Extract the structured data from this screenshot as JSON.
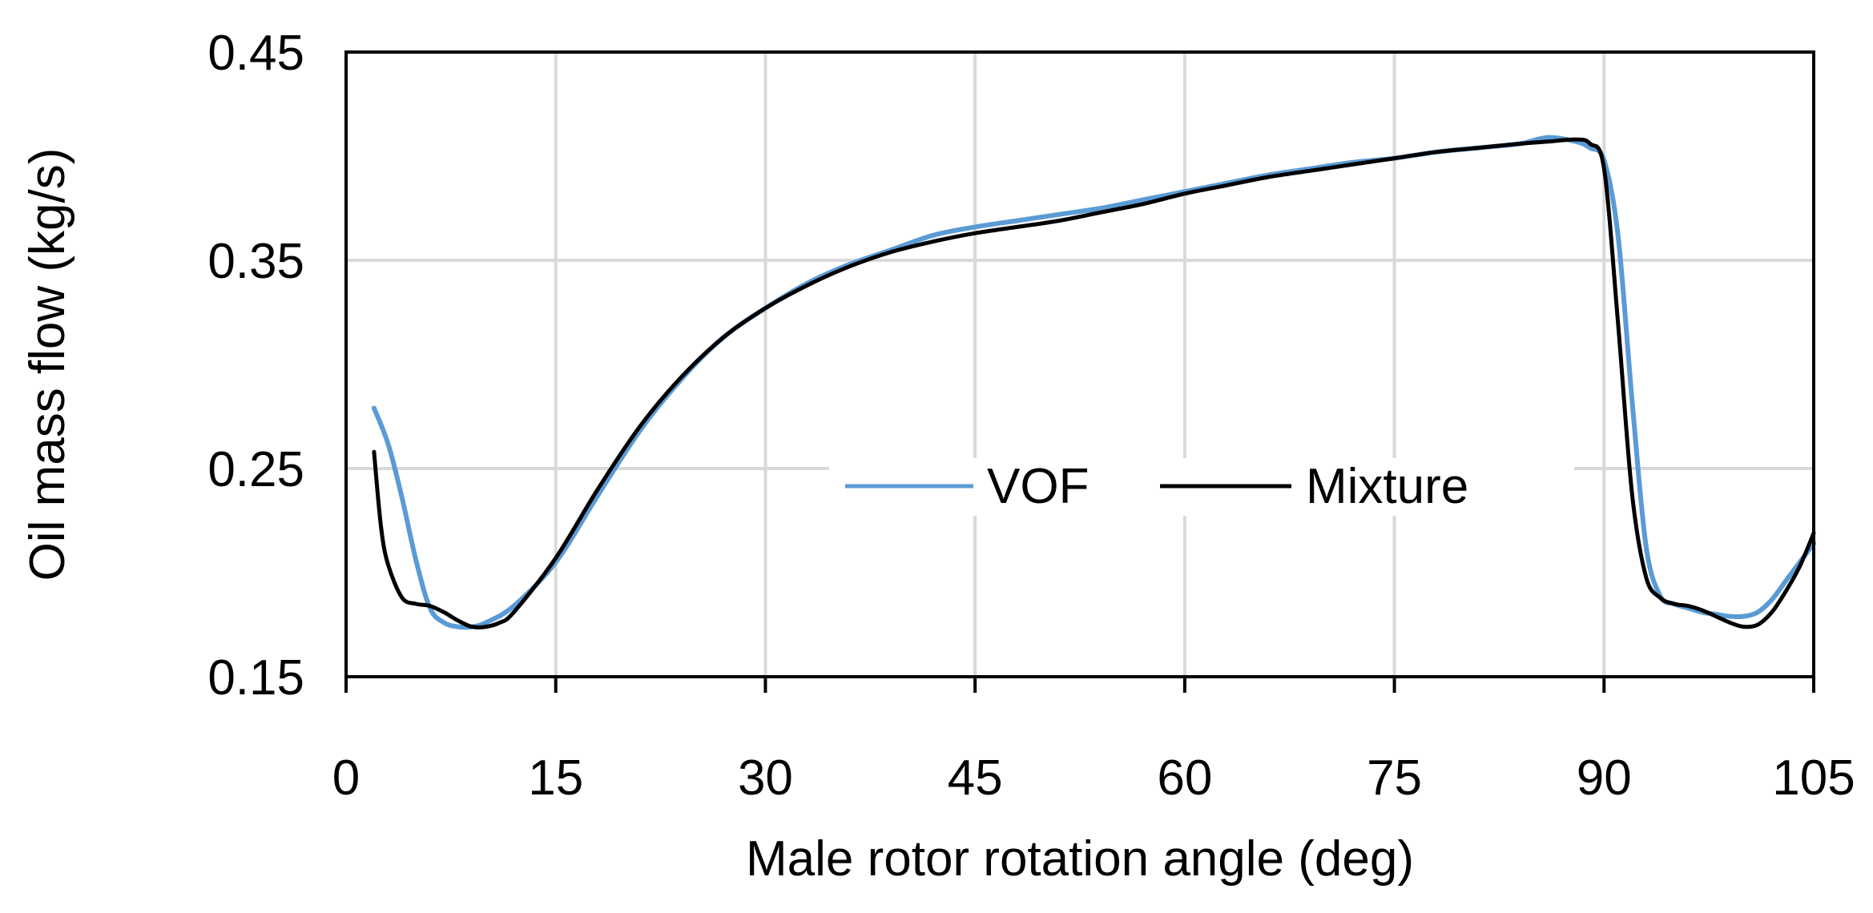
{
  "chart_data": {
    "type": "line",
    "title": "",
    "xlabel": "Male rotor rotation angle (deg)",
    "ylabel": "Oil mass flow (kg/s)",
    "xlim": [
      0,
      105
    ],
    "ylim": [
      0.15,
      0.45
    ],
    "xticks": [
      0,
      15,
      30,
      45,
      60,
      75,
      90,
      105
    ],
    "yticks": [
      0.15,
      0.25,
      0.35,
      0.45
    ],
    "xtick_labels": [
      "0",
      "15",
      "30",
      "45",
      "60",
      "75",
      "90",
      "105"
    ],
    "ytick_labels": [
      "0.15",
      "0.25",
      "0.35",
      "0.45"
    ],
    "grid": true,
    "legend_position": "center-right",
    "series": [
      {
        "name": "VOF",
        "color": "#5b9bd5",
        "x": [
          2,
          3,
          4,
          5,
          6,
          7,
          8,
          9,
          10,
          12,
          15,
          18,
          21,
          24,
          27,
          30,
          33,
          36,
          39,
          42,
          45,
          48,
          51,
          54,
          57,
          60,
          63,
          66,
          69,
          72,
          75,
          78,
          81,
          84,
          86,
          88,
          89,
          90,
          91,
          92,
          93,
          94,
          95,
          96,
          97,
          98,
          99,
          100,
          101,
          102,
          103,
          104,
          105
        ],
        "values": [
          0.279,
          0.262,
          0.236,
          0.206,
          0.183,
          0.176,
          0.174,
          0.174,
          0.176,
          0.184,
          0.205,
          0.237,
          0.268,
          0.293,
          0.313,
          0.327,
          0.339,
          0.348,
          0.355,
          0.362,
          0.366,
          0.369,
          0.372,
          0.375,
          0.379,
          0.383,
          0.387,
          0.391,
          0.394,
          0.397,
          0.399,
          0.402,
          0.404,
          0.406,
          0.409,
          0.407,
          0.404,
          0.398,
          0.362,
          0.283,
          0.213,
          0.189,
          0.185,
          0.183,
          0.181,
          0.18,
          0.179,
          0.179,
          0.181,
          0.187,
          0.196,
          0.205,
          0.214
        ]
      },
      {
        "name": "Mixture",
        "color": "#000000",
        "x": [
          2,
          2.5,
          3,
          4,
          5,
          6,
          7,
          8,
          9,
          10,
          11,
          12,
          15,
          18,
          21,
          24,
          27,
          30,
          33,
          36,
          39,
          42,
          45,
          48,
          51,
          54,
          57,
          60,
          63,
          66,
          69,
          72,
          75,
          78,
          81,
          84,
          86,
          88,
          89,
          90,
          91,
          92,
          93,
          94,
          95,
          96,
          97,
          98,
          99,
          100,
          101,
          102,
          103,
          104,
          105
        ],
        "values": [
          0.258,
          0.222,
          0.204,
          0.188,
          0.185,
          0.184,
          0.181,
          0.177,
          0.174,
          0.174,
          0.176,
          0.181,
          0.207,
          0.24,
          0.27,
          0.294,
          0.313,
          0.327,
          0.338,
          0.347,
          0.354,
          0.359,
          0.363,
          0.366,
          0.369,
          0.373,
          0.377,
          0.382,
          0.386,
          0.39,
          0.393,
          0.396,
          0.399,
          0.402,
          0.404,
          0.406,
          0.407,
          0.408,
          0.406,
          0.394,
          0.32,
          0.238,
          0.198,
          0.188,
          0.185,
          0.184,
          0.182,
          0.179,
          0.176,
          0.174,
          0.175,
          0.181,
          0.191,
          0.203,
          0.219
        ]
      }
    ]
  }
}
